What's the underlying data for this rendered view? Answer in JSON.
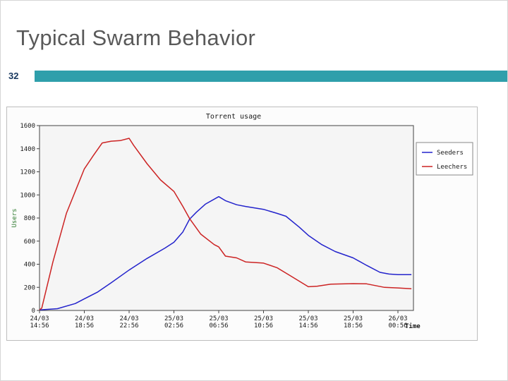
{
  "slide": {
    "title": "Typical Swarm Behavior",
    "page_number": "32"
  },
  "accent_colors": {
    "teal_bar": "#2f9fab",
    "title_text": "#595959",
    "page_number_text": "#17375e"
  },
  "chart_data": {
    "type": "line",
    "title": "Torrent usage",
    "ylabel": "Users",
    "xlabel": "Time",
    "ylim": [
      0,
      1600
    ],
    "ytick_step": 200,
    "grid": false,
    "legend_position": "right",
    "x_ticks": [
      "24/03 14:56",
      "24/03 18:56",
      "24/03 22:56",
      "25/03 02:56",
      "25/03 06:56",
      "25/03 10:56",
      "25/03 14:56",
      "25/03 18:56",
      "26/03 00:56"
    ],
    "legend": [
      {
        "name": "Seeders",
        "color": "#2323cc"
      },
      {
        "name": "Leechers",
        "color": "#cc2323"
      }
    ],
    "series": [
      {
        "name": "Seeders",
        "color": "#2323cc",
        "points": [
          [
            0,
            5
          ],
          [
            0.4,
            15
          ],
          [
            0.8,
            60
          ],
          [
            1,
            100
          ],
          [
            1.3,
            160
          ],
          [
            1.6,
            240
          ],
          [
            2,
            350
          ],
          [
            2.4,
            450
          ],
          [
            2.8,
            540
          ],
          [
            3,
            590
          ],
          [
            3.2,
            680
          ],
          [
            3.35,
            790
          ],
          [
            3.5,
            850
          ],
          [
            3.7,
            920
          ],
          [
            4,
            985
          ],
          [
            4.15,
            950
          ],
          [
            4.4,
            915
          ],
          [
            4.6,
            900
          ],
          [
            5,
            875
          ],
          [
            5.3,
            840
          ],
          [
            5.5,
            815
          ],
          [
            5.8,
            720
          ],
          [
            6,
            650
          ],
          [
            6.3,
            570
          ],
          [
            6.6,
            510
          ],
          [
            7,
            455
          ],
          [
            7.3,
            390
          ],
          [
            7.6,
            330
          ],
          [
            7.8,
            315
          ],
          [
            8,
            310
          ],
          [
            8.3,
            310
          ]
        ]
      },
      {
        "name": "Leechers",
        "color": "#cc2323",
        "points": [
          [
            0,
            5
          ],
          [
            0.05,
            20
          ],
          [
            0.3,
            420
          ],
          [
            0.6,
            840
          ],
          [
            1,
            1225
          ],
          [
            1.2,
            1340
          ],
          [
            1.4,
            1450
          ],
          [
            1.6,
            1465
          ],
          [
            1.8,
            1470
          ],
          [
            2,
            1490
          ],
          [
            2.1,
            1430
          ],
          [
            2.4,
            1270
          ],
          [
            2.7,
            1130
          ],
          [
            3,
            1030
          ],
          [
            3.2,
            900
          ],
          [
            3.35,
            795
          ],
          [
            3.6,
            660
          ],
          [
            3.9,
            570
          ],
          [
            4,
            550
          ],
          [
            4.15,
            470
          ],
          [
            4.4,
            455
          ],
          [
            4.6,
            420
          ],
          [
            5,
            410
          ],
          [
            5.3,
            370
          ],
          [
            5.6,
            300
          ],
          [
            6,
            205
          ],
          [
            6.2,
            210
          ],
          [
            6.5,
            228
          ],
          [
            7,
            232
          ],
          [
            7.3,
            230
          ],
          [
            7.5,
            215
          ],
          [
            7.7,
            200
          ],
          [
            8,
            195
          ],
          [
            8.3,
            188
          ]
        ]
      }
    ]
  }
}
